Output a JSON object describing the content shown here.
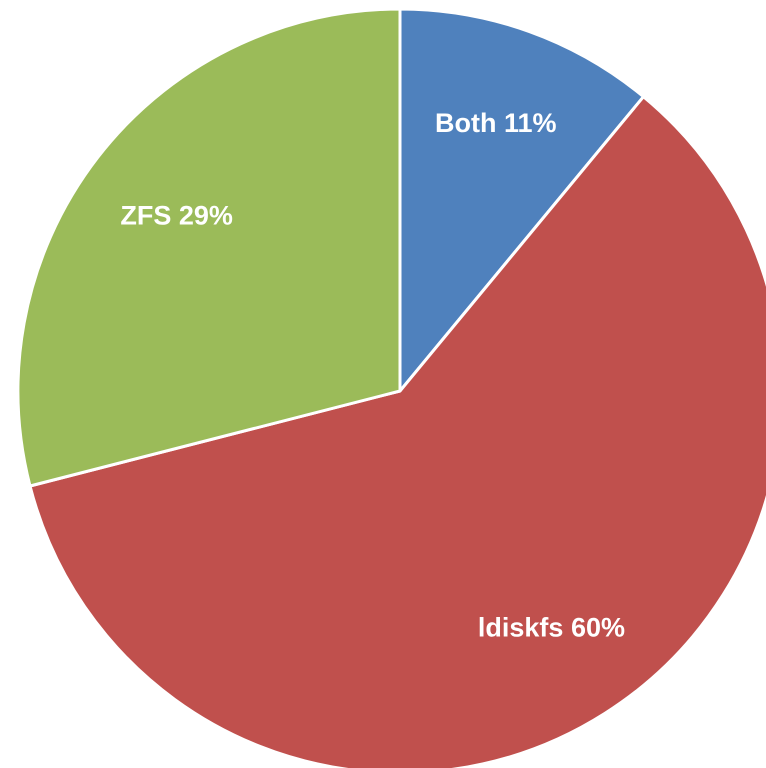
{
  "chart_data": {
    "type": "pie",
    "categories": [
      "Both",
      "ldiskfs",
      "ZFS"
    ],
    "values": [
      11,
      60,
      29
    ],
    "value_labels": [
      "11%",
      "60%",
      "29%"
    ],
    "colors": [
      "#4f81bd",
      "#c0504d",
      "#9bbb59"
    ]
  }
}
